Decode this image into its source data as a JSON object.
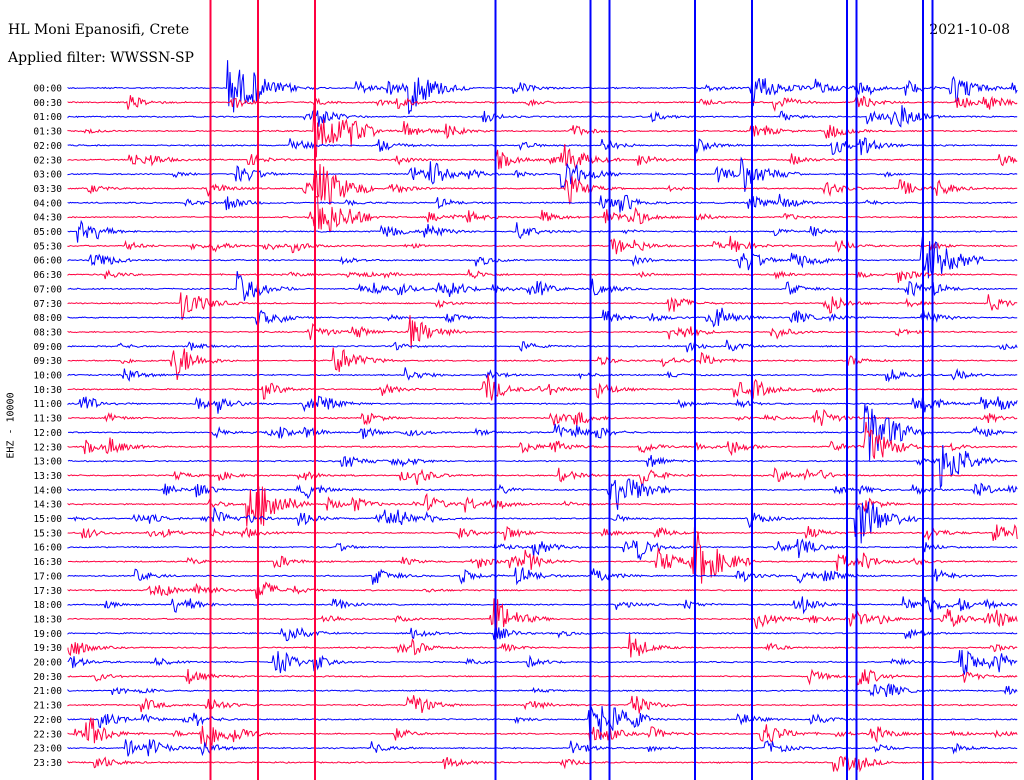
{
  "header": {
    "station": "HL Moni Epanosifi, Crete",
    "filter": "Applied filter: WWSSN-SP",
    "date": "2021-10-08",
    "channel_label": "EHZ - 10000"
  },
  "colors": {
    "even_trace": "#0000ff",
    "odd_trace": "#ff0040"
  },
  "chart_data": {
    "type": "line",
    "title": "HL Moni Epanosifi, Crete",
    "subtitle": "Applied filter: WWSSN-SP",
    "ylabel": "EHZ - 10000",
    "xlabel": "",
    "rows": [
      "00:00",
      "00:30",
      "01:00",
      "01:30",
      "02:00",
      "02:30",
      "03:00",
      "03:30",
      "04:00",
      "04:30",
      "05:00",
      "05:30",
      "06:00",
      "06:30",
      "07:00",
      "07:30",
      "08:00",
      "08:30",
      "09:00",
      "09:30",
      "10:00",
      "10:30",
      "11:00",
      "11:30",
      "12:00",
      "12:30",
      "13:00",
      "13:30",
      "14:00",
      "14:30",
      "15:00",
      "15:30",
      "16:00",
      "16:30",
      "17:00",
      "17:30",
      "18:00",
      "18:30",
      "19:00",
      "19:30",
      "20:00",
      "20:30",
      "21:00",
      "21:30",
      "22:00",
      "22:30",
      "23:00",
      "23:30"
    ],
    "series": [
      {
        "color": "blue",
        "rows": "00:00, 01:00, 02:00 ... 23:00"
      },
      {
        "color": "red",
        "rows": "00:30, 01:30, 02:30 ... 23:30"
      }
    ],
    "events": [
      {
        "row": "00:00",
        "x_frac": 0.17,
        "amp": 1.0
      },
      {
        "row": "00:00",
        "x_frac": 0.36,
        "amp": 0.8
      },
      {
        "row": "00:00",
        "x_frac": 0.72,
        "amp": 0.7
      },
      {
        "row": "00:00",
        "x_frac": 0.93,
        "amp": 0.6
      },
      {
        "row": "01:30",
        "x_frac": 0.26,
        "amp": 1.0
      },
      {
        "row": "02:30",
        "x_frac": 0.52,
        "amp": 0.6
      },
      {
        "row": "03:00",
        "x_frac": 0.52,
        "amp": 0.7
      },
      {
        "row": "03:00",
        "x_frac": 0.71,
        "amp": 0.6
      },
      {
        "row": "03:30",
        "x_frac": 0.26,
        "amp": 1.0
      },
      {
        "row": "04:30",
        "x_frac": 0.26,
        "amp": 0.9
      },
      {
        "row": "06:00",
        "x_frac": 0.9,
        "amp": 1.0
      },
      {
        "row": "07:00",
        "x_frac": 0.18,
        "amp": 0.6
      },
      {
        "row": "07:30",
        "x_frac": 0.12,
        "amp": 0.6
      },
      {
        "row": "08:30",
        "x_frac": 0.36,
        "amp": 0.6
      },
      {
        "row": "09:30",
        "x_frac": 0.11,
        "amp": 0.5
      },
      {
        "row": "09:30",
        "x_frac": 0.28,
        "amp": 0.6
      },
      {
        "row": "12:00",
        "x_frac": 0.84,
        "amp": 1.0
      },
      {
        "row": "12:30",
        "x_frac": 0.84,
        "amp": 0.8
      },
      {
        "row": "13:00",
        "x_frac": 0.92,
        "amp": 0.8
      },
      {
        "row": "14:00",
        "x_frac": 0.57,
        "amp": 1.0
      },
      {
        "row": "14:30",
        "x_frac": 0.19,
        "amp": 0.8
      },
      {
        "row": "15:00",
        "x_frac": 0.83,
        "amp": 1.0
      },
      {
        "row": "16:30",
        "x_frac": 0.66,
        "amp": 1.0
      },
      {
        "row": "16:30",
        "x_frac": 0.62,
        "amp": 0.5
      },
      {
        "row": "18:30",
        "x_frac": 0.45,
        "amp": 0.6
      },
      {
        "row": "20:00",
        "x_frac": 0.94,
        "amp": 0.5
      },
      {
        "row": "22:00",
        "x_frac": 0.55,
        "amp": 1.0
      },
      {
        "row": "22:30",
        "x_frac": 0.14,
        "amp": 0.7
      },
      {
        "row": "22:30",
        "x_frac": 0.73,
        "amp": 0.5
      }
    ],
    "long_spikes": [
      {
        "x_frac": 0.26,
        "color": "red"
      },
      {
        "x_frac": 0.2,
        "color": "red"
      },
      {
        "x_frac": 0.15,
        "color": "red"
      },
      {
        "x_frac": 0.55,
        "color": "blue"
      },
      {
        "x_frac": 0.57,
        "color": "blue"
      },
      {
        "x_frac": 0.66,
        "color": "blue"
      },
      {
        "x_frac": 0.82,
        "color": "blue"
      },
      {
        "x_frac": 0.83,
        "color": "blue"
      },
      {
        "x_frac": 0.9,
        "color": "blue"
      },
      {
        "x_frac": 0.91,
        "color": "blue"
      },
      {
        "x_frac": 0.72,
        "color": "blue"
      },
      {
        "x_frac": 0.45,
        "color": "blue"
      }
    ],
    "grid": false,
    "legend": "none"
  }
}
